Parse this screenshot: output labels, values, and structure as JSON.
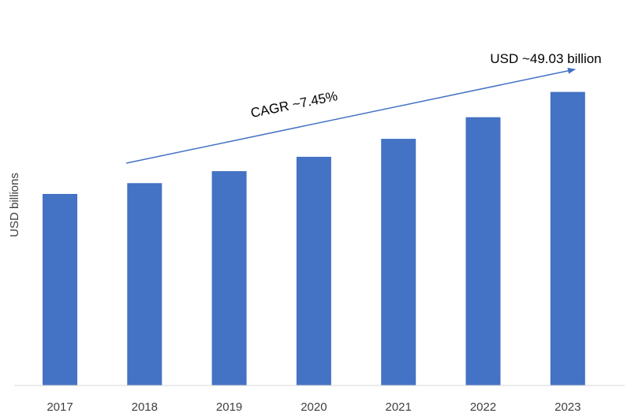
{
  "chart_data": {
    "type": "bar",
    "categories": [
      "2017",
      "2018",
      "2019",
      "2020",
      "2021",
      "2022",
      "2023"
    ],
    "values": [
      32.0,
      33.8,
      35.8,
      38.2,
      41.2,
      44.8,
      49.03
    ],
    "xlabel": "",
    "ylabel": "USD billions",
    "ylim": [
      0,
      49.9
    ],
    "grid": false,
    "legend": "none",
    "bar_color": "#4472C4",
    "annotations": {
      "cagr_label": "CAGR ~7.45%",
      "end_value_label": "USD ~49.03 billion"
    }
  },
  "colors": {
    "bar": "#4472C4",
    "arrow": "#4472C4",
    "axis": "#d9d9d9",
    "text": "#404040"
  }
}
